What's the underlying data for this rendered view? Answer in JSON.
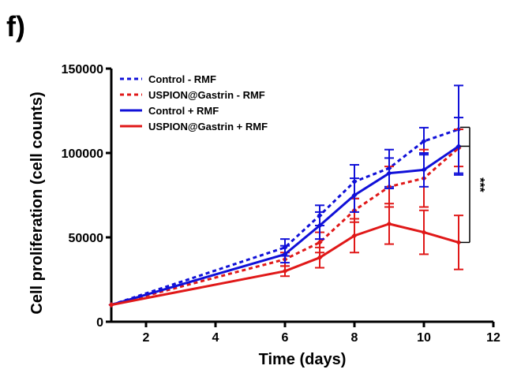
{
  "panel_label": "f)",
  "colors": {
    "blue": "#1010d8",
    "red": "#e01818",
    "axis": "#000000"
  },
  "chart_data": {
    "type": "line",
    "xlabel": "Time (days)",
    "ylabel": "Cell proliferation (cell counts)",
    "xlim": [
      1,
      12
    ],
    "ylim": [
      0,
      150000
    ],
    "xticks": [
      2,
      4,
      6,
      8,
      10,
      12
    ],
    "yticks": [
      0,
      50000,
      100000,
      150000
    ],
    "x": [
      1,
      6,
      7,
      8,
      9,
      10,
      11
    ],
    "legend_position": "top-left",
    "series": [
      {
        "name": "Control - RMF",
        "color": "blue",
        "style": "dotted",
        "values": [
          10000,
          44000,
          63000,
          83000,
          91000,
          107000,
          114000
        ],
        "errors": [
          0,
          5000,
          6000,
          10000,
          11000,
          8000,
          26000
        ]
      },
      {
        "name": "USPION@Gastrin - RMF",
        "color": "red",
        "style": "dotted",
        "values": [
          10000,
          37000,
          47000,
          66000,
          80000,
          85000,
          103000
        ],
        "errors": [
          0,
          4000,
          6000,
          7000,
          12000,
          17000,
          11000
        ]
      },
      {
        "name": "Control + RMF",
        "color": "blue",
        "style": "solid",
        "values": [
          10000,
          40000,
          57000,
          75000,
          88000,
          90000,
          104000
        ],
        "errors": [
          0,
          5000,
          8000,
          10000,
          9000,
          10000,
          17000
        ]
      },
      {
        "name": "USPION@Gastrin + RMF",
        "color": "red",
        "style": "solid",
        "values": [
          10000,
          30000,
          38000,
          51000,
          58000,
          53000,
          47000
        ],
        "errors": [
          0,
          3000,
          6000,
          10000,
          12000,
          13000,
          16000
        ]
      }
    ],
    "significance": {
      "label": "***",
      "between_y": [
        104000,
        47000
      ]
    }
  }
}
